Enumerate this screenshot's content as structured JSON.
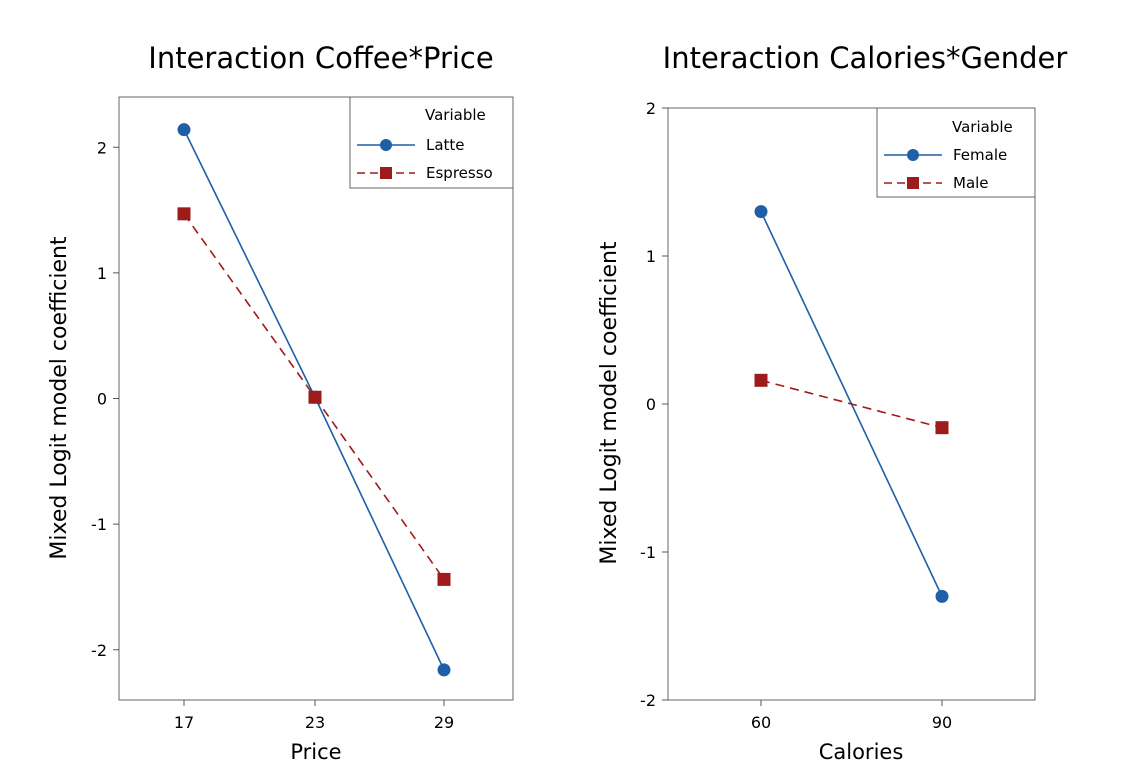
{
  "chart_data": [
    {
      "type": "line",
      "title": "Interaction Coffee*Price",
      "xlabel": "Price",
      "ylabel": "Mixed Logit model coefficient",
      "categories": [
        "17",
        "23",
        "29"
      ],
      "yticks": [
        "-2",
        "-1",
        "0",
        "1",
        "2"
      ],
      "ylim": [
        -2.4,
        2.4
      ],
      "legend_title": "Variable",
      "legend_position": "top-right",
      "series": [
        {
          "name": "Latte",
          "values": [
            2.14,
            0.01,
            -2.16
          ],
          "color": "#1f5fa8",
          "marker": "circle",
          "dash": "solid"
        },
        {
          "name": "Espresso",
          "values": [
            1.47,
            0.01,
            -1.44
          ],
          "color": "#9e1b1b",
          "marker": "square",
          "dash": "dashed"
        }
      ]
    },
    {
      "type": "line",
      "title": "Interaction Calories*Gender",
      "xlabel": "Calories",
      "ylabel": "Mixed Logit model coefficient",
      "categories": [
        "60",
        "90"
      ],
      "yticks": [
        "-2",
        "-1",
        "0",
        "1",
        "2"
      ],
      "ylim": [
        -2,
        2
      ],
      "legend_title": "Variable",
      "legend_position": "top-right",
      "series": [
        {
          "name": "Female",
          "values": [
            1.3,
            -1.3
          ],
          "color": "#1f5fa8",
          "marker": "circle",
          "dash": "solid"
        },
        {
          "name": "Male",
          "values": [
            0.16,
            -0.16
          ],
          "color": "#9e1b1b",
          "marker": "square",
          "dash": "dashed"
        }
      ]
    }
  ]
}
